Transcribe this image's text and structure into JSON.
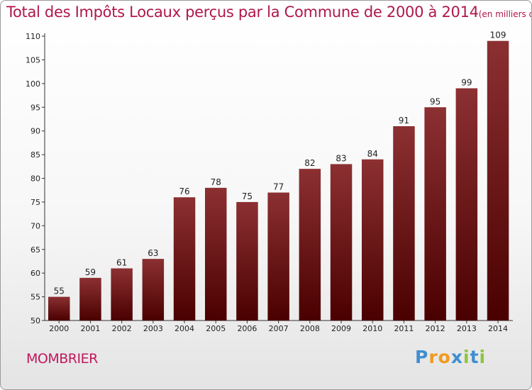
{
  "chart_data": {
    "type": "bar",
    "title": "Total des Impôts Locaux perçus par la Commune de 2000 à 2014",
    "unit": "(en milliers d'€)",
    "categories": [
      "2000",
      "2001",
      "2002",
      "2003",
      "2004",
      "2005",
      "2006",
      "2007",
      "2008",
      "2009",
      "2010",
      "2011",
      "2012",
      "2013",
      "2014"
    ],
    "values": [
      55,
      59,
      61,
      63,
      76,
      78,
      75,
      77,
      82,
      83,
      84,
      91,
      95,
      99,
      109
    ],
    "ylim": [
      50,
      110
    ],
    "yticks": [
      50,
      55,
      60,
      65,
      70,
      75,
      80,
      85,
      90,
      95,
      100,
      105,
      110
    ],
    "grid": false,
    "colors": {
      "bar_top": "#8c3032",
      "bar_bottom": "#4a0000",
      "title": "#b0174a"
    }
  },
  "commune": "MOMBRIER",
  "logo": {
    "letters": [
      "P",
      "r",
      "o",
      "x",
      "i",
      "t",
      "i"
    ],
    "colors": [
      "#3f8fd0",
      "#f29a1d",
      "#f29a1d",
      "#3f8fd0",
      "#8cc63f",
      "#3f8fd0",
      "#8cc63f"
    ]
  }
}
